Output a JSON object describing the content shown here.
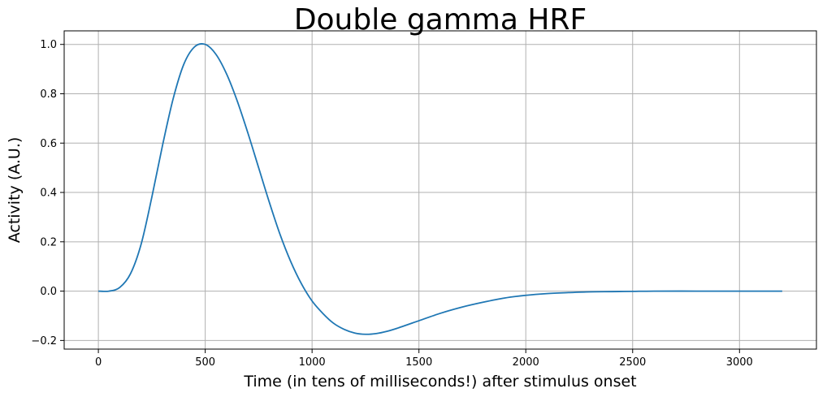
{
  "chart_data": {
    "type": "line",
    "title": "Double gamma HRF",
    "xlabel": "Time (in tens of milliseconds!) after stimulus onset",
    "ylabel": "Activity (A.U.)",
    "xlim": [
      -160,
      3360
    ],
    "ylim": [
      -0.235,
      1.055
    ],
    "xticks": [
      0,
      500,
      1000,
      1500,
      2000,
      2500,
      3000
    ],
    "xtick_labels": [
      "0",
      "500",
      "1000",
      "1500",
      "2000",
      "2500",
      "3000"
    ],
    "yticks": [
      -0.2,
      0.0,
      0.2,
      0.4,
      0.6,
      0.8,
      1.0
    ],
    "ytick_labels": [
      "−0.2",
      "0.0",
      "0.2",
      "0.4",
      "0.6",
      "0.8",
      "1.0"
    ],
    "grid": true,
    "series": [
      {
        "color": "#1f77b4",
        "x": [
          0,
          50,
          100,
          150,
          200,
          250,
          300,
          350,
          400,
          450,
          500,
          550,
          600,
          650,
          700,
          750,
          800,
          850,
          900,
          950,
          1000,
          1050,
          1100,
          1150,
          1200,
          1250,
          1300,
          1350,
          1400,
          1450,
          1500,
          1600,
          1700,
          1800,
          1900,
          2000,
          2100,
          2200,
          2300,
          2400,
          2500,
          2600,
          2800,
          3000,
          3200
        ],
        "y": [
          0.0,
          0.0,
          0.015,
          0.07,
          0.19,
          0.38,
          0.59,
          0.78,
          0.92,
          0.99,
          1.0,
          0.96,
          0.88,
          0.77,
          0.64,
          0.5,
          0.36,
          0.23,
          0.12,
          0.03,
          -0.04,
          -0.09,
          -0.13,
          -0.155,
          -0.17,
          -0.175,
          -0.172,
          -0.163,
          -0.15,
          -0.135,
          -0.12,
          -0.09,
          -0.065,
          -0.045,
          -0.028,
          -0.017,
          -0.01,
          -0.006,
          -0.003,
          -0.002,
          -0.001,
          0.0,
          0.0,
          0.0,
          0.0
        ]
      }
    ]
  }
}
